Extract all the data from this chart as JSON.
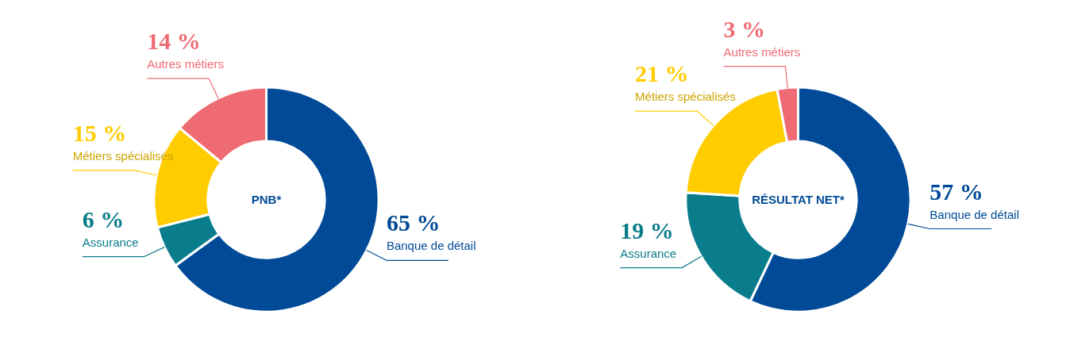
{
  "chart_data": [
    {
      "type": "donut",
      "title": "PNB*",
      "categories": [
        "Banque de détail",
        "Assurance",
        "Métiers spécialisés",
        "Autres métiers"
      ],
      "values": [
        65,
        6,
        15,
        14
      ],
      "colors": [
        "#004a97",
        "#0a7d8c",
        "#ffcc00",
        "#ee6b74"
      ],
      "value_labels": [
        "65 %",
        "6 %",
        "15 %",
        "14 %"
      ],
      "legend": false
    },
    {
      "type": "donut",
      "title": "RÉSULTAT NET*",
      "categories": [
        "Banque de détail",
        "Assurance",
        "Métiers spécialisés",
        "Autres métiers"
      ],
      "values": [
        57,
        19,
        21,
        3
      ],
      "colors": [
        "#004a97",
        "#0a7d8c",
        "#ffcc00",
        "#ee6b74"
      ],
      "value_labels": [
        "57 %",
        "19 %",
        "21 %",
        "3 %"
      ],
      "legend": false
    }
  ]
}
